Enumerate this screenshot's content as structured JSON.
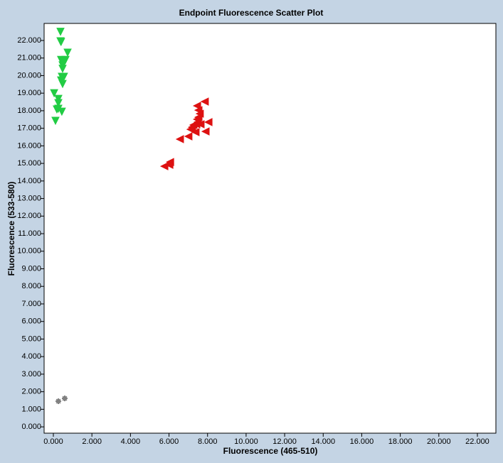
{
  "chart_data": {
    "type": "scatter",
    "title": "Endpoint Fluorescence Scatter Plot",
    "xlabel": "Fluorescence (465-510)",
    "ylabel": "Fluorescence (533-580)",
    "xlim": [
      -480,
      22960
    ],
    "ylim": [
      -360,
      22970
    ],
    "xticks": [
      {
        "value": 0,
        "label": "0.000"
      },
      {
        "value": 2000,
        "label": "2.000"
      },
      {
        "value": 4000,
        "label": "4.000"
      },
      {
        "value": 6000,
        "label": "6.000"
      },
      {
        "value": 8000,
        "label": "8.000"
      },
      {
        "value": 10000,
        "label": "10.000"
      },
      {
        "value": 12000,
        "label": "12.000"
      },
      {
        "value": 14000,
        "label": "14.000"
      },
      {
        "value": 16000,
        "label": "16.000"
      },
      {
        "value": 18000,
        "label": "18.000"
      },
      {
        "value": 20000,
        "label": "20.000"
      },
      {
        "value": 22000,
        "label": "22.000"
      }
    ],
    "yticks": [
      {
        "value": 0,
        "label": "0.000"
      },
      {
        "value": 1000,
        "label": "1.000"
      },
      {
        "value": 2000,
        "label": "2.000"
      },
      {
        "value": 3000,
        "label": "3.000"
      },
      {
        "value": 4000,
        "label": "4.000"
      },
      {
        "value": 5000,
        "label": "5.000"
      },
      {
        "value": 6000,
        "label": "6.000"
      },
      {
        "value": 7000,
        "label": "7.000"
      },
      {
        "value": 8000,
        "label": "8.000"
      },
      {
        "value": 9000,
        "label": "9.000"
      },
      {
        "value": 10000,
        "label": "10.000"
      },
      {
        "value": 11000,
        "label": "11.000"
      },
      {
        "value": 12000,
        "label": "12.000"
      },
      {
        "value": 13000,
        "label": "13.000"
      },
      {
        "value": 14000,
        "label": "14.000"
      },
      {
        "value": 15000,
        "label": "15.000"
      },
      {
        "value": 16000,
        "label": "16.000"
      },
      {
        "value": 17000,
        "label": "17.000"
      },
      {
        "value": 18000,
        "label": "18.000"
      },
      {
        "value": 19000,
        "label": "19.000"
      },
      {
        "value": 20000,
        "label": "20.000"
      },
      {
        "value": 21000,
        "label": "21.000"
      },
      {
        "value": 22000,
        "label": "22.000"
      }
    ],
    "series": [
      {
        "color": "#22cc44",
        "marker": "triangle-down",
        "x": [
          370,
          370,
          400,
          740,
          400,
          630,
          480,
          480,
          480,
          550,
          440,
          400,
          480,
          40,
          260,
          260,
          260,
          180,
          440,
          110
        ],
        "values": [
          22500,
          21960,
          21920,
          21310,
          20900,
          20900,
          20790,
          20590,
          20390,
          19940,
          19940,
          19730,
          19530,
          19000,
          18680,
          18440,
          18120,
          18080,
          17950,
          17430
        ]
      },
      {
        "color": "#dd1111",
        "marker": "triangle-left",
        "x": [
          7860,
          7460,
          7530,
          7600,
          7530,
          7460,
          7490,
          8050,
          7420,
          7270,
          7200,
          7120,
          7640,
          7380,
          7900,
          7010,
          6570,
          6060,
          6020,
          5760
        ],
        "values": [
          18520,
          18280,
          18030,
          17830,
          17630,
          17510,
          17350,
          17350,
          17230,
          17190,
          17060,
          16940,
          17230,
          16780,
          16820,
          16540,
          16380,
          15080,
          14920,
          14840
        ]
      },
      {
        "color": "#808080",
        "marker": "star",
        "x": [
          260,
          590
        ],
        "values": [
          1460,
          1620
        ]
      }
    ]
  }
}
